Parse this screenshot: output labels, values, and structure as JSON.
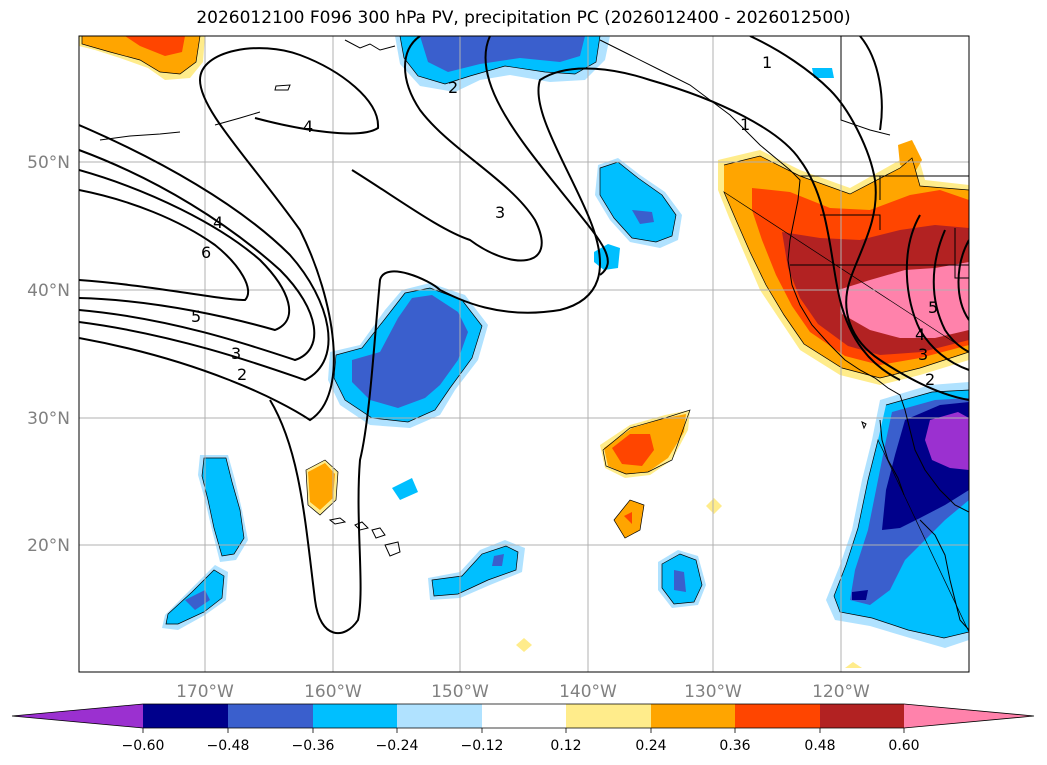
{
  "title": "2026012100 F096 300 hPa PV, precipitation PC (2026012400 - 2026012500)",
  "colors": {
    "neg_060": "#9b30d0",
    "neg_048": "#00008b",
    "neg_036": "#3a5fcd",
    "neg_024": "#00bfff",
    "neg_012": "#b0e2ff",
    "neutral": "#ffffff",
    "pos_012": "#ffec8b",
    "pos_024": "#ffa500",
    "pos_036": "#ff4500",
    "pos_048": "#b22222",
    "pos_060": "#ff82ab",
    "grid": "#b0b0b0",
    "contour": "#000000"
  },
  "lat_labels": [
    "50°N",
    "40°N",
    "30°N",
    "20°N"
  ],
  "lon_labels": [
    "170°W",
    "160°W",
    "150°W",
    "140°W",
    "130°W",
    "120°W"
  ],
  "colorbar": {
    "ticks": [
      "−0.60",
      "−0.48",
      "−0.36",
      "−0.24",
      "−0.12",
      "0.12",
      "0.24",
      "0.36",
      "0.48",
      "0.60"
    ]
  },
  "pv_contour_labels": [
    "4",
    "4",
    "6",
    "5",
    "3",
    "2",
    "3",
    "2",
    "1",
    "1",
    "5",
    "4",
    "3",
    "2"
  ]
}
